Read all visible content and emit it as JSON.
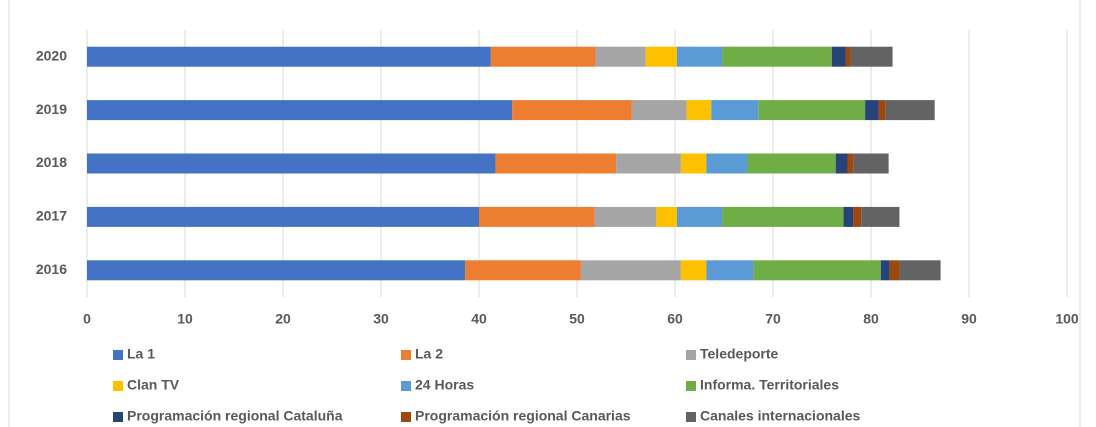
{
  "chart_data": {
    "type": "stacked_barh",
    "categories": [
      "2020",
      "2019",
      "2018",
      "2017",
      "2016"
    ],
    "series": [
      {
        "name": "La 1",
        "color": "#4472c4",
        "values": [
          41.2,
          43.4,
          41.7,
          40.0,
          38.6
        ]
      },
      {
        "name": "La 2",
        "color": "#ed7d31",
        "values": [
          10.7,
          12.2,
          12.3,
          11.8,
          11.8
        ]
      },
      {
        "name": "Teledeporte",
        "color": "#a5a5a5",
        "values": [
          5.1,
          5.6,
          6.6,
          6.3,
          10.2
        ]
      },
      {
        "name": "Clan TV",
        "color": "#ffc000",
        "values": [
          3.2,
          2.5,
          2.6,
          2.1,
          2.6
        ]
      },
      {
        "name": "24 Horas",
        "color": "#5b9bd5",
        "values": [
          4.6,
          4.8,
          4.2,
          4.6,
          4.8
        ]
      },
      {
        "name": "Informa. Territoriales",
        "color": "#70ad47",
        "values": [
          11.2,
          10.9,
          9.0,
          12.4,
          13.0
        ]
      },
      {
        "name": "Programación regional Cataluña",
        "color": "#264478",
        "values": [
          1.4,
          1.4,
          1.2,
          1.0,
          0.9
        ]
      },
      {
        "name": "Programación regional Canarias",
        "color": "#9e480e",
        "values": [
          0.5,
          0.7,
          0.6,
          0.8,
          1.0
        ]
      },
      {
        "name": "Canales internacionales",
        "color": "#636363",
        "values": [
          4.3,
          5.0,
          3.6,
          3.9,
          4.2
        ]
      }
    ],
    "xlim": [
      0,
      100
    ],
    "xticks": [
      0,
      10,
      20,
      30,
      40,
      50,
      60,
      70,
      80,
      90,
      100
    ],
    "grid": true,
    "legend": "bottom"
  }
}
